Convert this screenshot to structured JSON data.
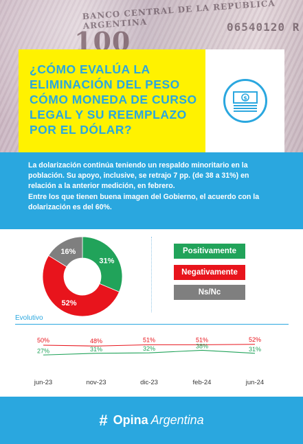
{
  "header": {
    "title": "¿CÓMO EVALÚA LA ELIMINACIÓN DEL PESO CÓMO MONEDA DE CURSO LEGAL Y SU REEMPLAZO POR EL DÓLAR?",
    "banknote_denomination": "100",
    "banknote_issuer": "BANCO CENTRAL DE LA REPUBLICA ARGENTINA",
    "banknote_serial": "06540120 R",
    "icon": "money-bill-icon",
    "colors": {
      "title_bg": "#fff200",
      "title_text": "#2aa7df",
      "accent": "#2aa7df"
    }
  },
  "info": {
    "paragraph1": "La dolarización continúa teniendo un respaldo minoritario en la población. Su apoyo, inclusive, se retrajo 7 pp. (de 38 a 31%) en relación a la anterior medición, en febrero.",
    "paragraph2": "Entre los que tienen buena imagen del Gobierno, el acuerdo con la dolarización es del 60%."
  },
  "chart_data": [
    {
      "type": "pie",
      "style": "donut",
      "slices": [
        {
          "label": "Positivamente",
          "value": 31,
          "display": "31%",
          "color": "#21a35a"
        },
        {
          "label": "Negativamente",
          "value": 52,
          "display": "52%",
          "color": "#e8141c"
        },
        {
          "label": "Ns/Nc",
          "value": 16,
          "display": "16%",
          "color": "#7f7f7f"
        }
      ],
      "legend_position": "right"
    },
    {
      "type": "line",
      "title": "Evolutivo",
      "x": [
        "jun-23",
        "nov-23",
        "dic-23",
        "feb-24",
        "jun-24"
      ],
      "series": [
        {
          "key": "negativamente",
          "values": [
            50,
            48,
            51,
            51,
            52
          ],
          "labels": [
            "50%",
            "48%",
            "51%",
            "51%",
            "52%"
          ],
          "color": "#e8141c"
        },
        {
          "key": "positivamente",
          "values": [
            27,
            31,
            32,
            38,
            31
          ],
          "labels": [
            "27%",
            "31%",
            "32%",
            "38%",
            "31%"
          ],
          "color": "#21a35a"
        }
      ],
      "grid": false
    }
  ],
  "footer": {
    "brand_mark": "#",
    "brand_bold": "Opina",
    "brand_rest": "Argentina"
  }
}
